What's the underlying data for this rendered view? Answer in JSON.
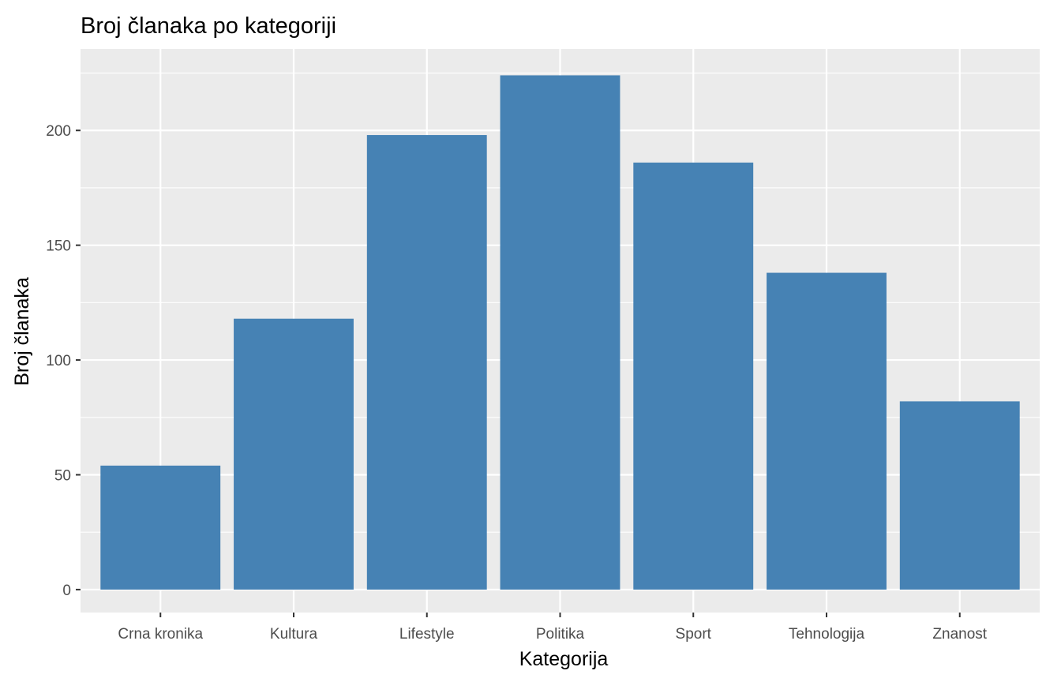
{
  "chart_data": {
    "type": "bar",
    "title": "Broj članaka po kategoriji",
    "xlabel": "Kategorija",
    "ylabel": "Broj članaka",
    "categories": [
      "Crna kronika",
      "Kultura",
      "Lifestyle",
      "Politika",
      "Sport",
      "Tehnologija",
      "Znanost"
    ],
    "values": [
      54,
      118,
      198,
      224,
      186,
      138,
      82
    ],
    "ylim": [
      -10,
      235.5
    ],
    "yticks": [
      0,
      50,
      100,
      150,
      200
    ],
    "ytick_labels": [
      "0",
      "50",
      "100",
      "150",
      "200"
    ],
    "grid": true,
    "legend": "none"
  },
  "colors": {
    "bar": "#4682b4",
    "panel": "#ebebeb",
    "grid": "#ffffff",
    "tick_text": "#4d4d4d",
    "tick_mark": "#333333",
    "text": "#000000"
  }
}
